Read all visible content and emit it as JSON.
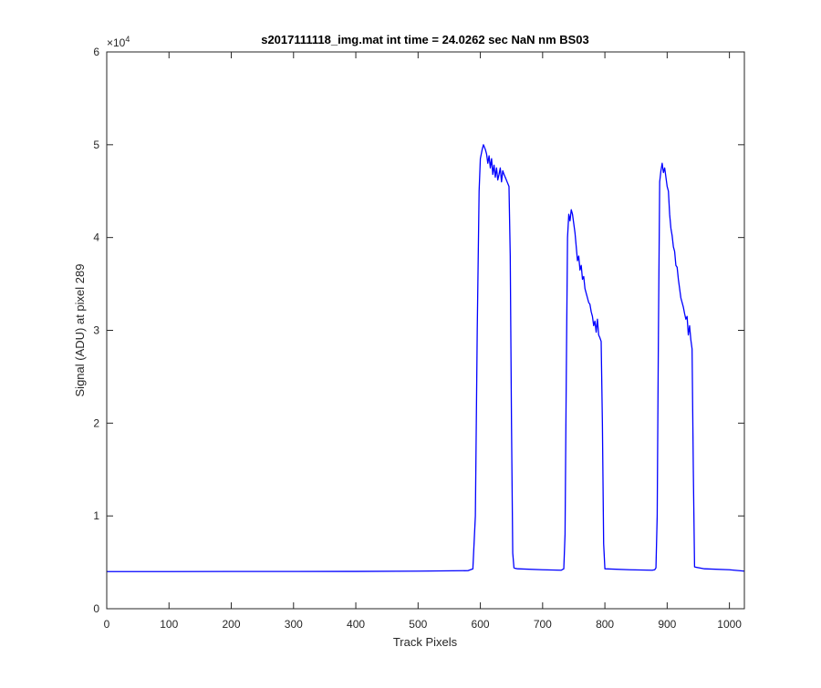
{
  "chart_data": {
    "type": "line",
    "title": "s2017111118_img.mat int time = 24.0262 sec  NaN nm BS03",
    "xlabel": "Track Pixels",
    "ylabel": "Signal (ADU) at pixel 289",
    "xlim": [
      0,
      1024
    ],
    "ylim": [
      0,
      60000
    ],
    "xticks": [
      0,
      100,
      200,
      300,
      400,
      500,
      600,
      700,
      800,
      900,
      1000
    ],
    "yticks": [
      0,
      10000,
      20000,
      30000,
      40000,
      50000,
      60000
    ],
    "xtick_labels": [
      "0",
      "100",
      "200",
      "300",
      "400",
      "500",
      "600",
      "700",
      "800",
      "900",
      "1000"
    ],
    "ytick_labels": [
      "0",
      "1",
      "2",
      "3",
      "4",
      "5",
      "6"
    ],
    "y_exponent_label": "×10",
    "y_exponent": "4",
    "grid": false,
    "series": [
      {
        "color": "#0000ff",
        "x": [
          0,
          100,
          200,
          300,
          400,
          500,
          580,
          588,
          592,
          595,
          598,
          600,
          603,
          605,
          608,
          610,
          612,
          614,
          616,
          618,
          620,
          622,
          624,
          626,
          628,
          630,
          632,
          634,
          636,
          638,
          640,
          643,
          646,
          648,
          650,
          652,
          654,
          656,
          660,
          700,
          730,
          734,
          736,
          738,
          740,
          742,
          744,
          746,
          748,
          750,
          752,
          754,
          756,
          758,
          760,
          762,
          764,
          766,
          768,
          770,
          772,
          774,
          776,
          778,
          780,
          782,
          784,
          786,
          788,
          790,
          792,
          794,
          796,
          798,
          800,
          840,
          876,
          880,
          882,
          884,
          886,
          888,
          890,
          892,
          894,
          896,
          898,
          900,
          902,
          904,
          906,
          908,
          910,
          912,
          914,
          916,
          918,
          920,
          922,
          924,
          926,
          928,
          930,
          932,
          934,
          936,
          938,
          940,
          942,
          944,
          960,
          1000,
          1024
        ],
        "y": [
          4000,
          4000,
          4010,
          4010,
          4020,
          4050,
          4100,
          4300,
          10000,
          30000,
          45000,
          48500,
          49500,
          50000,
          49500,
          49000,
          48000,
          48800,
          47500,
          48500,
          46800,
          47800,
          46500,
          47500,
          46200,
          46800,
          47500,
          46000,
          47200,
          46800,
          46500,
          46000,
          45500,
          38000,
          20000,
          6000,
          4400,
          4350,
          4300,
          4200,
          4150,
          4300,
          8000,
          25000,
          40000,
          42500,
          41800,
          43000,
          42500,
          41500,
          40500,
          39000,
          37500,
          38000,
          36500,
          37000,
          35500,
          35800,
          34500,
          34000,
          33500,
          33000,
          32800,
          32000,
          31500,
          30500,
          31000,
          29800,
          31200,
          29500,
          29200,
          28800,
          20000,
          7000,
          4300,
          4200,
          4150,
          4200,
          4400,
          10000,
          30000,
          46000,
          47200,
          48000,
          47000,
          47500,
          46500,
          45500,
          45000,
          42500,
          41000,
          40200,
          39000,
          38500,
          37000,
          36800,
          35500,
          34500,
          33500,
          33000,
          32500,
          31800,
          31200,
          31500,
          29500,
          30500,
          29000,
          28000,
          15000,
          4500,
          4300,
          4200,
          4050
        ]
      }
    ]
  }
}
